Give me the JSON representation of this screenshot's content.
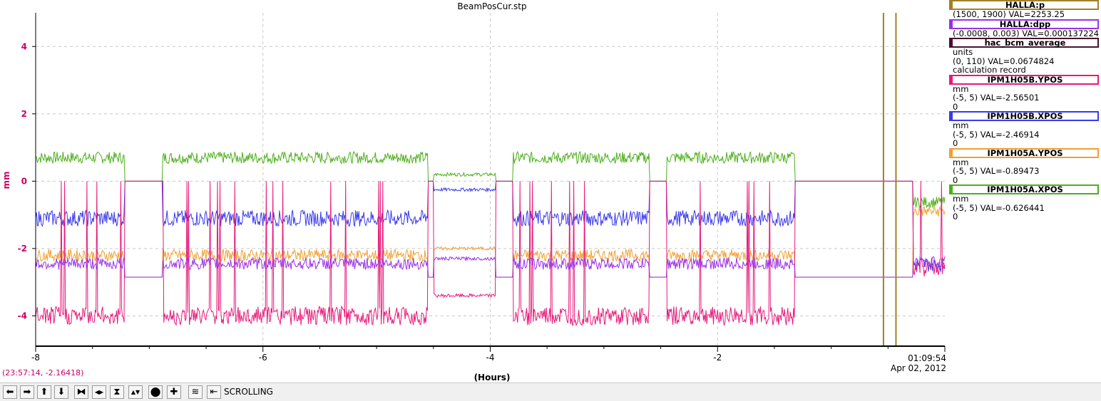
{
  "chart_data": {
    "type": "line",
    "title": "BeamPosCur.stp",
    "xlabel": "(Hours)",
    "ylabel": "mm",
    "xlim": [
      -8,
      0
    ],
    "ylim": [
      -4.9,
      5
    ],
    "x_ticks": [
      -8,
      -6,
      -4,
      -2
    ],
    "x_tick_labels": [
      "-8",
      "-6",
      "-4",
      "-2"
    ],
    "y_ticks": [
      -4,
      -2,
      0,
      2,
      4
    ],
    "y_tick_labels": [
      "-4",
      "-2",
      "0",
      "2",
      "4"
    ],
    "end_time_label": "01:09:54",
    "end_date_label": "Apr 02, 2012",
    "grid": true,
    "legend_position": "right",
    "markers": [
      {
        "series": "HALLA:p",
        "x": -0.54,
        "color": "#a08028"
      },
      {
        "series": "HALLA:p",
        "x": -0.43,
        "color": "#a08028"
      }
    ],
    "segments": [
      [
        -8,
        -7.22
      ],
      [
        -6.88,
        -4.55
      ],
      [
        -3.8,
        -2.6
      ],
      [
        -2.45,
        -1.32
      ],
      [
        -0.28,
        0
      ]
    ],
    "series": [
      {
        "name": "IPM1H05A.XPOS",
        "color": "#4caf1a",
        "values_mm": {
          "beam_on": 0.7,
          "beam_off": 0.0,
          "tuning": 0.2,
          "final": -0.626441
        }
      },
      {
        "name": "IPM1H05B.XPOS",
        "color": "#3a3aee",
        "values_mm": {
          "beam_on": -1.1,
          "beam_off": 0.0,
          "tuning": -0.25,
          "final": -2.46914
        }
      },
      {
        "name": "IPM1H05A.YPOS",
        "color": "#f0a030",
        "values_mm": {
          "beam_on": -2.2,
          "beam_off": -2.85,
          "tuning": -2.0,
          "final": -0.89473
        }
      },
      {
        "name": "IPM1H05B.YPOS",
        "color": "#e8197a",
        "values_mm": {
          "beam_on": -4.0,
          "beam_off": 0.0,
          "tuning": -3.4,
          "final": -2.56501
        }
      },
      {
        "name": "HALLA:dpp",
        "color": "#9a30e8",
        "values_mm": {
          "beam_on": -2.45,
          "beam_off": -2.85,
          "tuning": -2.3,
          "final": -2.4
        }
      }
    ]
  },
  "legend": [
    {
      "name": "HALLA:p",
      "color": "#a08028",
      "lines": [
        "(1500, 1900) VAL=2253.25"
      ]
    },
    {
      "name": "HALLA:dpp",
      "color": "#9a30e8",
      "lines": [
        "(-0.0008, 0.003) VAL=0.000137224"
      ]
    },
    {
      "name": "hac_bcm_average",
      "color": "#4a1030",
      "lines": [
        "units",
        "(0, 110) VAL=0.0674824",
        "calculation record"
      ]
    },
    {
      "name": "IPM1H05B.YPOS",
      "color": "#e8197a",
      "lines": [
        "mm",
        "(-5, 5) VAL=-2.56501",
        "0"
      ]
    },
    {
      "name": "IPM1H05B.XPOS",
      "color": "#3a3aee",
      "lines": [
        "mm",
        "(-5, 5) VAL=-2.46914",
        "0"
      ]
    },
    {
      "name": "IPM1H05A.YPOS",
      "color": "#f0a030",
      "lines": [
        "mm",
        "(-5, 5) VAL=-0.89473",
        "0"
      ]
    },
    {
      "name": "IPM1H05A.XPOS",
      "color": "#4caf1a",
      "lines": [
        "mm",
        "(-5, 5) VAL=-0.626441",
        "0"
      ]
    }
  ],
  "status": {
    "cursor_readout": "(23:57:14, -2.16418)"
  },
  "toolbar": {
    "mode_label": "SCROLLING",
    "buttons": [
      {
        "name": "scroll-left-button",
        "icon": "arrow-left-icon",
        "glyph": "⬅"
      },
      {
        "name": "scroll-right-button",
        "icon": "arrow-right-icon",
        "glyph": "➡"
      },
      {
        "name": "scroll-up-button",
        "icon": "arrow-up-icon",
        "glyph": "⬆"
      },
      {
        "name": "scroll-down-button",
        "icon": "arrow-down-icon",
        "glyph": "⬇"
      },
      {
        "name": "zoom-in-horizontal-button",
        "icon": "zoom-in-x-icon",
        "glyph": "⧓"
      },
      {
        "name": "zoom-out-horizontal-button",
        "icon": "zoom-out-x-icon",
        "glyph": "◀▶"
      },
      {
        "name": "zoom-in-vertical-button",
        "icon": "zoom-in-y-icon",
        "glyph": "⧗"
      },
      {
        "name": "zoom-out-vertical-button",
        "icon": "zoom-out-y-icon",
        "glyph": "▲▼"
      },
      {
        "name": "zoom-reset-button",
        "icon": "circle-reset-icon",
        "glyph": "⬤"
      },
      {
        "name": "add-button",
        "icon": "plus-icon",
        "glyph": "✚"
      },
      {
        "name": "autoscale-button",
        "icon": "autoscale-icon",
        "glyph": "≋"
      },
      {
        "name": "scroll-toggle-button",
        "icon": "scroll-toggle-icon",
        "glyph": "⇤"
      }
    ]
  }
}
